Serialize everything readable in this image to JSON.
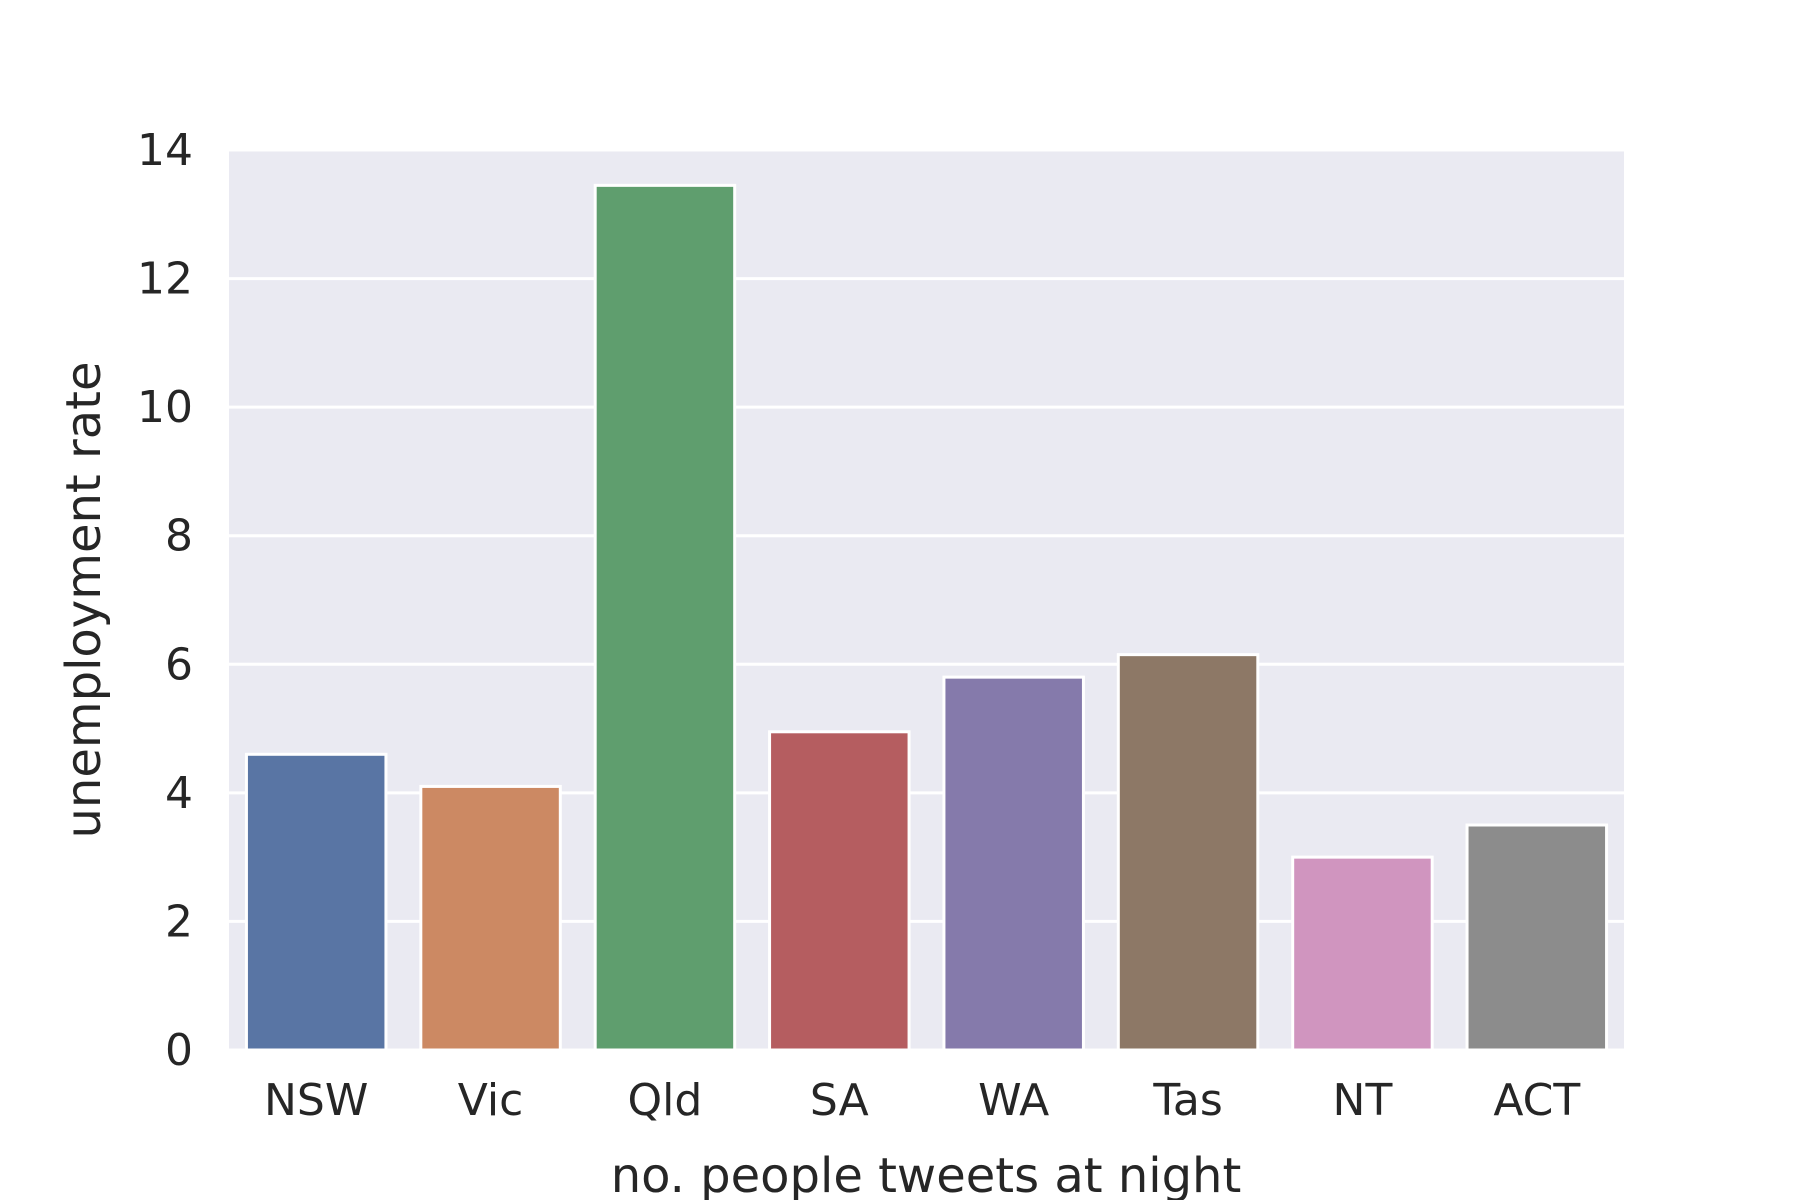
{
  "chart_data": {
    "type": "bar",
    "title": "",
    "xlabel": "no. people tweets at night",
    "ylabel": "unemployment rate",
    "categories": [
      "NSW",
      "Vic",
      "Qld",
      "SA",
      "WA",
      "Tas",
      "NT",
      "ACT"
    ],
    "values": [
      4.6,
      4.1,
      13.45,
      4.95,
      5.8,
      6.15,
      3.0,
      3.5
    ],
    "colors": [
      "#5975a4",
      "#cc8963",
      "#5f9e6e",
      "#b55d60",
      "#857aab",
      "#8d7866",
      "#d095bf",
      "#8c8c8c"
    ],
    "ylim": [
      0,
      14
    ],
    "yticks": [
      0,
      2,
      4,
      6,
      8,
      10,
      12,
      14
    ],
    "grid": true,
    "background": "#eaeaf2"
  }
}
